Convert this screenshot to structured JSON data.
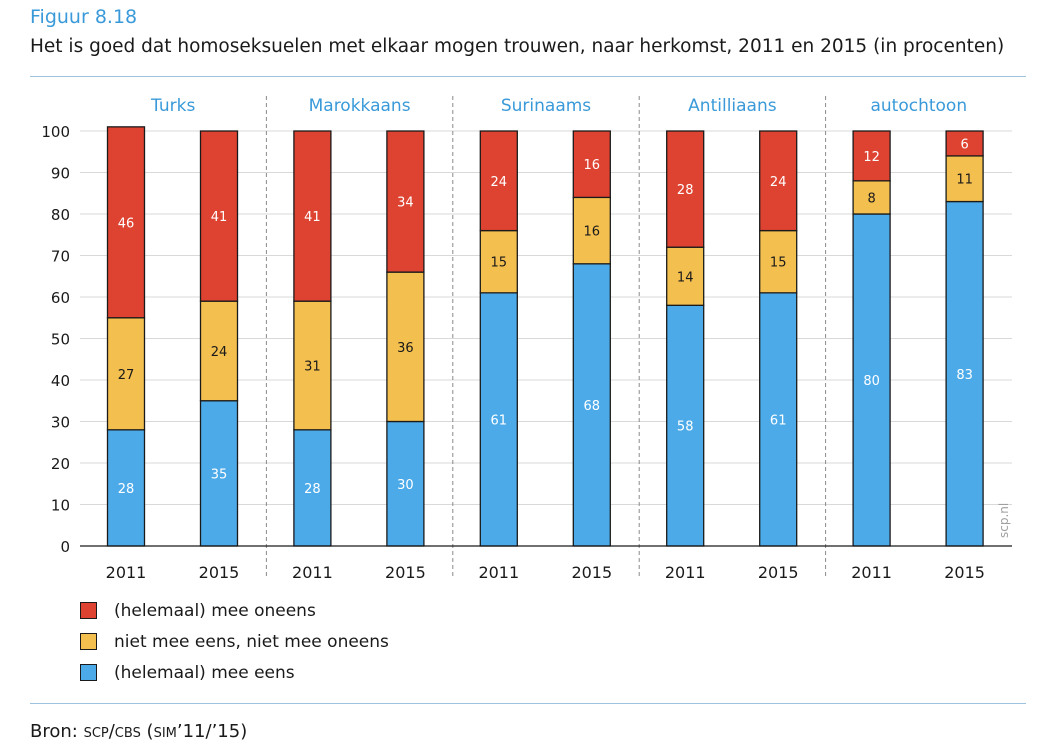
{
  "figure": {
    "label": "Figuur 8.18",
    "title": "Het is goed dat homoseksuelen met elkaar mogen trouwen, naar herkomst, 2011 en 2015 (in procenten)",
    "source_prefix": "Bron:",
    "source_text": "scp/cbs (sim’11/’15)",
    "watermark": "scp.nl"
  },
  "chart_data": {
    "type": "bar",
    "stacked": true,
    "groups": [
      "Turks",
      "Marokkaans",
      "Surinaams",
      "Antilliaans",
      "autochtoon"
    ],
    "categories": [
      "2011",
      "2015",
      "2011",
      "2015",
      "2011",
      "2015",
      "2011",
      "2015",
      "2011",
      "2015"
    ],
    "series": [
      {
        "name": "(helemaal) mee eens",
        "color": "#4daae8",
        "values": [
          28,
          35,
          28,
          30,
          61,
          68,
          58,
          61,
          80,
          83
        ]
      },
      {
        "name": "niet mee eens, niet mee oneens",
        "color": "#f3bf4f",
        "values": [
          27,
          24,
          31,
          36,
          15,
          16,
          14,
          15,
          8,
          11
        ]
      },
      {
        "name": "(helemaal) mee oneens",
        "color": "#de4331",
        "values": [
          46,
          41,
          41,
          34,
          24,
          16,
          28,
          24,
          12,
          6
        ]
      }
    ],
    "yticks": [
      0,
      10,
      20,
      30,
      40,
      50,
      60,
      70,
      80,
      90,
      100
    ],
    "ylim": [
      0,
      100
    ],
    "grid": true,
    "legend_position": "bottom-left"
  },
  "colors": {
    "accent": "#3a9ad9",
    "grid": "#d9d9d9",
    "separator": "#8a8a8a"
  }
}
